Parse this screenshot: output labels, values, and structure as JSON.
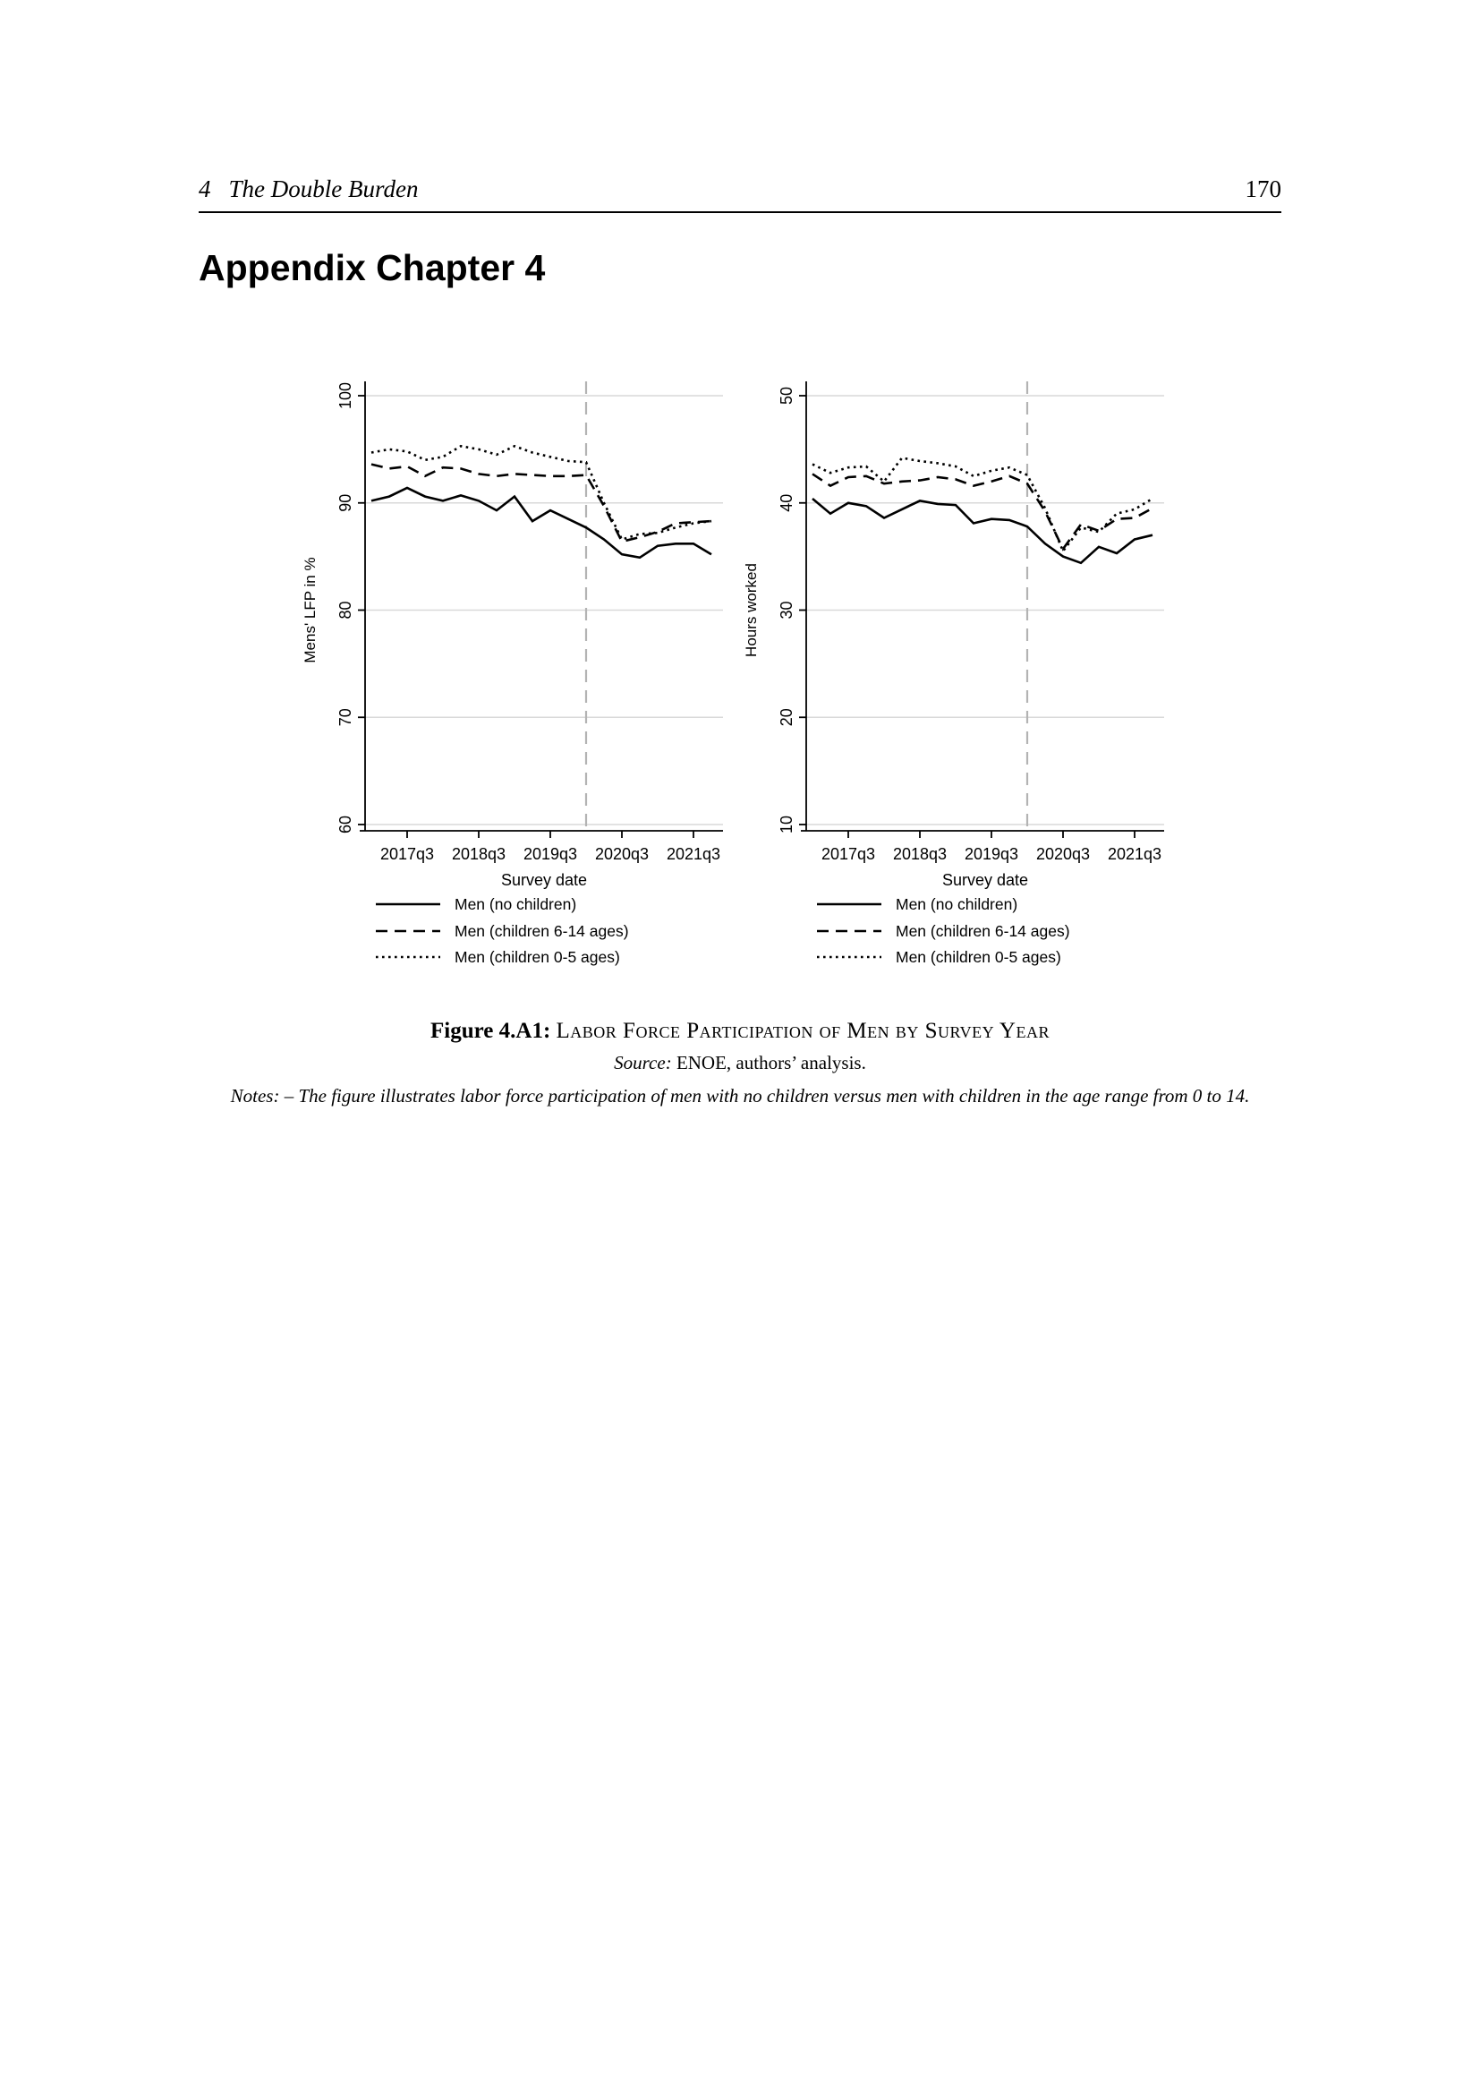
{
  "page": {
    "section_number": "4",
    "section_title": "The Double Burden",
    "page_number": "170",
    "heading": "Appendix Chapter 4"
  },
  "figure": {
    "caption_label": "Figure 4.A1:",
    "caption_title": "Labor Force Participation of Men by Survey Year",
    "source_label": "Source:",
    "source_text": "ENOE, authors’ analysis.",
    "notes_label": "Notes:",
    "notes_text": "– The figure illustrates labor force participation of men with no children versus men with children in the age range from 0 to 14."
  },
  "colors": {
    "grid": "#d9d9d9",
    "vline": "#b3b3b3",
    "series": "#000000",
    "axis": "#000000"
  },
  "chart_data": [
    {
      "type": "line",
      "title": "",
      "xlabel": "Survey date",
      "ylabel": "Mens' LFP in %",
      "ylim": [
        60,
        100
      ],
      "yticks": [
        100,
        90,
        80,
        70,
        60
      ],
      "grid": true,
      "legend_position": "below",
      "x": [
        "2017q1",
        "2017q2",
        "2017q3",
        "2017q4",
        "2018q1",
        "2018q2",
        "2018q3",
        "2018q4",
        "2019q1",
        "2019q2",
        "2019q3",
        "2019q4",
        "2020q1",
        "2020q2",
        "2020q3",
        "2020q4",
        "2021q1",
        "2021q2",
        "2021q3",
        "2021q4"
      ],
      "xtick_labels": [
        "2017q3",
        "2018q3",
        "2019q3",
        "2020q3",
        "2021q3"
      ],
      "vline_x": "2020q1",
      "series": [
        {
          "name": "Men (no children)",
          "style": "solid",
          "values": [
            90.2,
            90.6,
            91.4,
            90.6,
            90.2,
            90.7,
            90.2,
            89.3,
            90.6,
            88.3,
            89.3,
            88.5,
            87.7,
            86.6,
            85.2,
            84.9,
            86.0,
            86.2,
            86.2,
            85.2
          ]
        },
        {
          "name": "Men (children 6-14 ages)",
          "style": "longdash",
          "values": [
            93.6,
            93.2,
            93.4,
            92.5,
            93.3,
            93.2,
            92.7,
            92.5,
            92.7,
            92.6,
            92.5,
            92.5,
            92.6,
            89.7,
            86.4,
            86.8,
            87.3,
            88.1,
            88.2,
            88.3
          ]
        },
        {
          "name": "Men (children 0-5 ages)",
          "style": "dot",
          "values": [
            94.7,
            95.0,
            94.8,
            94.0,
            94.3,
            95.3,
            95.0,
            94.5,
            95.3,
            94.7,
            94.3,
            93.9,
            93.8,
            90.0,
            86.6,
            87.1,
            87.2,
            87.7,
            88.1,
            88.3
          ]
        }
      ]
    },
    {
      "type": "line",
      "title": "",
      "xlabel": "Survey date",
      "ylabel": "Hours worked",
      "ylim": [
        10,
        50
      ],
      "yticks": [
        50,
        40,
        30,
        20,
        10
      ],
      "grid": true,
      "legend_position": "below",
      "x": [
        "2017q1",
        "2017q2",
        "2017q3",
        "2017q4",
        "2018q1",
        "2018q2",
        "2018q3",
        "2018q4",
        "2019q1",
        "2019q2",
        "2019q3",
        "2019q4",
        "2020q1",
        "2020q2",
        "2020q3",
        "2020q4",
        "2021q1",
        "2021q2",
        "2021q3",
        "2021q4"
      ],
      "xtick_labels": [
        "2017q3",
        "2018q3",
        "2019q3",
        "2020q3",
        "2021q3"
      ],
      "vline_x": "2020q1",
      "series": [
        {
          "name": "Men (no children)",
          "style": "solid",
          "values": [
            40.4,
            39.0,
            40.0,
            39.7,
            38.6,
            39.4,
            40.2,
            39.9,
            39.8,
            38.1,
            38.5,
            38.4,
            37.8,
            36.2,
            35.0,
            34.4,
            35.9,
            35.3,
            36.6,
            37.0
          ]
        },
        {
          "name": "Men (children 6-14 ages)",
          "style": "longdash",
          "values": [
            42.7,
            41.6,
            42.4,
            42.5,
            41.8,
            42.0,
            42.1,
            42.4,
            42.2,
            41.6,
            42.0,
            42.5,
            41.8,
            39.2,
            35.7,
            38.0,
            37.4,
            38.5,
            38.6,
            39.5
          ]
        },
        {
          "name": "Men (children 0-5 ages)",
          "style": "dot",
          "values": [
            43.6,
            42.8,
            43.3,
            43.4,
            42.0,
            44.2,
            43.9,
            43.7,
            43.4,
            42.5,
            43.0,
            43.3,
            42.6,
            39.5,
            35.5,
            37.7,
            37.3,
            39.0,
            39.4,
            40.4
          ]
        }
      ]
    }
  ]
}
